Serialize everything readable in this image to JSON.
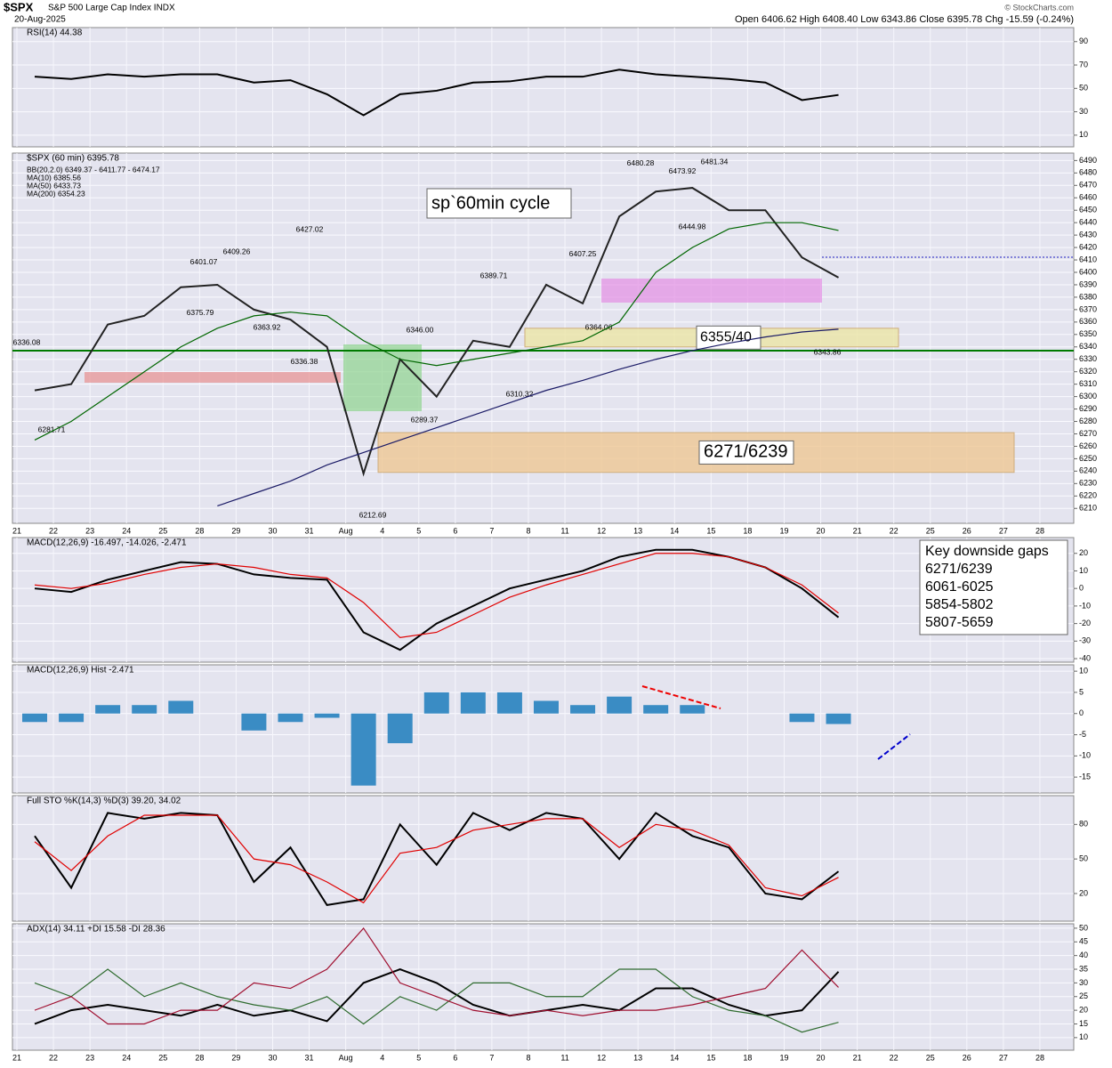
{
  "header": {
    "symbol": "$SPX",
    "name": "S&P 500 Large Cap Index INDX",
    "date": "20-Aug-2025",
    "ohlc": "Open 6406.62  High 6408.40  Low 6343.86  Close 6395.78  Chg -15.59 (-0.24%)",
    "credit": "© StockCharts.com"
  },
  "chart_data": [
    {
      "type": "line",
      "title": "RSI(14) 44.38",
      "ylim": [
        0,
        102
      ],
      "yticks": [
        10,
        30,
        50,
        70,
        90
      ],
      "grid": true,
      "series": [
        {
          "color": "#000000",
          "values": [
            60,
            58,
            62,
            60,
            62,
            62,
            55,
            57,
            45,
            27,
            45,
            48,
            55,
            56,
            60,
            60,
            66,
            62,
            60,
            58,
            55,
            40,
            44.38,
            null,
            null,
            null,
            null,
            null,
            null
          ]
        }
      ]
    },
    {
      "type": "line",
      "title": "$SPX (60 min) 6395.78",
      "legend": [
        "BB(20,2.0) 6349.37 - 6411.77 - 6474.17",
        "MA(10) 6385.56",
        "MA(50) 6433.73",
        "MA(200) 6354.23"
      ],
      "categories": [
        "21",
        "22",
        "23",
        "24",
        "25",
        "28",
        "29",
        "30",
        "31",
        "Aug",
        "4",
        "5",
        "6",
        "7",
        "8",
        "11",
        "12",
        "13",
        "14",
        "15",
        "18",
        "19",
        "20",
        "21",
        "22",
        "25",
        "26",
        "27",
        "28"
      ],
      "ylim": [
        6198,
        6496
      ],
      "yticks": [
        6210,
        6220,
        6230,
        6240,
        6250,
        6260,
        6270,
        6280,
        6290,
        6300,
        6310,
        6320,
        6330,
        6340,
        6350,
        6360,
        6370,
        6380,
        6390,
        6400,
        6410,
        6420,
        6430,
        6440,
        6450,
        6460,
        6470,
        6480,
        6490
      ],
      "grid": true,
      "series": [
        {
          "color": "#222222",
          "values": [
            6305,
            6310,
            6358,
            6365,
            6388,
            6390,
            6370,
            6362,
            6340,
            6238,
            6330,
            6300,
            6345,
            6340,
            6390,
            6375,
            6445,
            6465,
            6468,
            6450,
            6450,
            6412,
            6395.78,
            null,
            null,
            null,
            null,
            null,
            null
          ]
        },
        {
          "color": "#006600",
          "values": [
            6265,
            6280,
            6300,
            6320,
            6340,
            6355,
            6365,
            6368,
            6365,
            6345,
            6330,
            6325,
            6330,
            6335,
            6340,
            6345,
            6360,
            6400,
            6420,
            6435,
            6440,
            6440,
            6433.73,
            null,
            null,
            null,
            null,
            null,
            null
          ]
        },
        {
          "color": "#1a1a66",
          "values": [
            null,
            null,
            null,
            null,
            null,
            6212,
            6222,
            6232,
            6245,
            6255,
            6265,
            6275,
            6285,
            6295,
            6305,
            6313,
            6322,
            6330,
            6337,
            6343,
            6348,
            6352,
            6354.23,
            null,
            null,
            null,
            null,
            null,
            null
          ]
        }
      ],
      "price_labels": [
        {
          "value": 6336.08,
          "label": "6336.08"
        },
        {
          "value": 6281.71,
          "label": "6281.71"
        },
        {
          "value": 6401.07,
          "label": "6401.07"
        },
        {
          "value": 6409.26,
          "label": "6409.26"
        },
        {
          "value": 6375.79,
          "label": "6375.79"
        },
        {
          "value": 6363.92,
          "label": "6363.92"
        },
        {
          "value": 6427.02,
          "label": "6427.02"
        },
        {
          "value": 6336.38,
          "label": "6336.38"
        },
        {
          "value": 6212.69,
          "label": "6212.69"
        },
        {
          "value": 6346,
          "label": "6346.00"
        },
        {
          "value": 6289.37,
          "label": "6289.37"
        },
        {
          "value": 6389.71,
          "label": "6389.71"
        },
        {
          "value": 6310.32,
          "label": "6310.32"
        },
        {
          "value": 6407.25,
          "label": "6407.25"
        },
        {
          "value": 6364.06,
          "label": "6364.06"
        },
        {
          "value": 6480.28,
          "label": "6480.28"
        },
        {
          "value": 6473.92,
          "label": "6473.92"
        },
        {
          "value": 6444.98,
          "label": "6444.98"
        },
        {
          "value": 6481.34,
          "label": "6481.34"
        },
        {
          "value": 6343.86,
          "label": "6343.86"
        }
      ],
      "zones": [
        {
          "label": "6355/40",
          "low": 6340,
          "high": 6355,
          "color": "#ece6a6"
        },
        {
          "label": "6271/6239",
          "low": 6239,
          "high": 6271,
          "color": "#efc894"
        }
      ],
      "annotation": "sp`60min cycle"
    },
    {
      "type": "line",
      "title": "MACD(12,26,9) -16.497, -14.026, -2.471",
      "ylim": [
        -42,
        29
      ],
      "yticks": [
        20,
        10,
        0,
        -10,
        -20,
        -30,
        -40
      ],
      "grid": true,
      "notes": {
        "title": "Key downside gaps",
        "items": [
          "6271/6239",
          "6061-6025",
          "5854-5802",
          "5807-5659"
        ]
      },
      "series": [
        {
          "color": "#000000",
          "values": [
            0,
            -2,
            5,
            10,
            15,
            14,
            8,
            6,
            5,
            -25,
            -35,
            -20,
            -10,
            0,
            5,
            10,
            18,
            22,
            22,
            18,
            12,
            0,
            -16.497,
            null,
            null,
            null,
            null,
            null,
            null
          ]
        },
        {
          "color": "#e00000",
          "values": [
            2,
            0,
            3,
            8,
            12,
            14,
            12,
            8,
            6,
            -8,
            -28,
            -25,
            -15,
            -5,
            2,
            8,
            14,
            20,
            20,
            18,
            12,
            2,
            -14.026,
            null,
            null,
            null,
            null,
            null,
            null
          ]
        }
      ]
    },
    {
      "type": "bar",
      "title": "MACD(12,26,9) Hist -2.471",
      "ylim": [
        -18.75,
        11.5
      ],
      "yticks": [
        10,
        5,
        0,
        -5,
        -10,
        -15
      ],
      "grid": true,
      "color": "#3a8cc4",
      "values": [
        -2,
        -2,
        2,
        2,
        3,
        0,
        -4,
        -2,
        -1,
        -17,
        -7,
        5,
        5,
        5,
        3,
        2,
        4,
        2,
        2,
        0,
        0,
        -2,
        -2.471,
        null,
        null,
        null,
        null,
        null,
        null
      ]
    },
    {
      "type": "line",
      "title": "Full STO %K(14,3) %D(3) 39.20, 34.02",
      "ylim": [
        -4,
        105
      ],
      "yticks": [
        20,
        50,
        80
      ],
      "grid": true,
      "series": [
        {
          "color": "#000000",
          "values": [
            70,
            25,
            90,
            85,
            90,
            88,
            30,
            60,
            10,
            15,
            80,
            45,
            90,
            75,
            90,
            85,
            50,
            90,
            70,
            60,
            20,
            15,
            39.2,
            null,
            null,
            null,
            null,
            null,
            null
          ]
        },
        {
          "color": "#e00000",
          "values": [
            65,
            40,
            70,
            88,
            88,
            88,
            50,
            45,
            30,
            12,
            55,
            60,
            75,
            80,
            85,
            85,
            60,
            80,
            75,
            62,
            25,
            18,
            34.02,
            null,
            null,
            null,
            null,
            null,
            null
          ]
        }
      ]
    },
    {
      "type": "line",
      "title": "ADX(14) 34.11 +DI 15.58 -DI 28.36",
      "ylim": [
        5.4,
        51.6
      ],
      "yticks": [
        10,
        15,
        20,
        25,
        30,
        35,
        40,
        45,
        50
      ],
      "grid": true,
      "categories": [
        "21",
        "22",
        "23",
        "24",
        "25",
        "28",
        "29",
        "30",
        "31",
        "Aug",
        "4",
        "5",
        "6",
        "7",
        "8",
        "11",
        "12",
        "13",
        "14",
        "15",
        "18",
        "19",
        "20",
        "21",
        "22",
        "25",
        "26",
        "27",
        "28"
      ],
      "series": [
        {
          "color": "#000000",
          "values": [
            15,
            20,
            22,
            20,
            18,
            22,
            18,
            20,
            16,
            30,
            35,
            30,
            22,
            18,
            20,
            22,
            20,
            28,
            28,
            22,
            18,
            20,
            34.11,
            null,
            null,
            null,
            null,
            null,
            null
          ]
        },
        {
          "color": "#2e6b2e",
          "values": [
            30,
            25,
            35,
            25,
            30,
            25,
            22,
            20,
            25,
            15,
            25,
            20,
            30,
            30,
            25,
            25,
            35,
            35,
            25,
            20,
            18,
            12,
            15.58,
            null,
            null,
            null,
            null,
            null,
            null
          ]
        },
        {
          "color": "#a01030",
          "values": [
            20,
            25,
            15,
            15,
            20,
            20,
            30,
            28,
            35,
            50,
            30,
            25,
            20,
            18,
            20,
            18,
            20,
            20,
            22,
            25,
            28,
            42,
            28.36,
            null,
            null,
            null,
            null,
            null,
            null
          ]
        }
      ]
    }
  ]
}
